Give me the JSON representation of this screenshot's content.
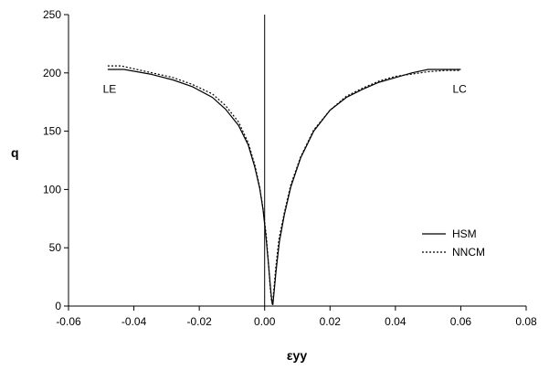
{
  "chart_data": {
    "type": "line",
    "title": "",
    "xlabel": "εyy",
    "ylabel": "q",
    "xlim": [
      -0.06,
      0.08
    ],
    "ylim": [
      0,
      250
    ],
    "x_ticks": [
      -0.06,
      -0.04,
      -0.02,
      0,
      0.02,
      0.04,
      0.06,
      0.08
    ],
    "x_tick_labels": [
      "-0.06",
      "-0.04",
      "-0.02",
      "0.00",
      "0.02",
      "0.04",
      "0.06",
      "0.08"
    ],
    "y_ticks": [
      0,
      50,
      100,
      150,
      200,
      250
    ],
    "y_tick_labels": [
      "0",
      "50",
      "100",
      "150",
      "200",
      "250"
    ],
    "grid": false,
    "legend_position": "right",
    "annotations": [
      {
        "text": "LE",
        "x": -0.0495,
        "y": 183
      },
      {
        "text": "LC",
        "x": 0.0575,
        "y": 183
      }
    ],
    "series": [
      {
        "name": "HSM",
        "style": "solid",
        "color": "#000000",
        "segments": [
          [
            [
              -0.048,
              203
            ],
            [
              -0.043,
              203
            ],
            [
              -0.035,
              199
            ],
            [
              -0.028,
              194
            ],
            [
              -0.022,
              188
            ],
            [
              -0.016,
              179
            ],
            [
              -0.012,
              169
            ],
            [
              -0.008,
              155
            ],
            [
              -0.005,
              138
            ],
            [
              -0.003,
              119
            ],
            [
              -0.0015,
              101
            ],
            [
              -0.0005,
              83
            ],
            [
              0.0004,
              60
            ],
            [
              0.0012,
              35
            ],
            [
              0.0018,
              15
            ],
            [
              0.0022,
              4
            ],
            [
              0.0025,
              1
            ]
          ],
          [
            [
              0.0025,
              1
            ],
            [
              0.003,
              15
            ],
            [
              0.0035,
              30
            ],
            [
              0.0045,
              55
            ],
            [
              0.006,
              78
            ],
            [
              0.008,
              102
            ],
            [
              0.011,
              127
            ],
            [
              0.015,
              150
            ],
            [
              0.02,
              168
            ],
            [
              0.025,
              179
            ],
            [
              0.03,
              186
            ],
            [
              0.035,
              192
            ],
            [
              0.04,
              196
            ],
            [
              0.045,
              200
            ],
            [
              0.05,
              203
            ],
            [
              0.055,
              203
            ],
            [
              0.06,
              203
            ]
          ]
        ]
      },
      {
        "name": "NNCM",
        "style": "dotted",
        "color": "#000000",
        "segments": [
          [
            [
              -0.048,
              206
            ],
            [
              -0.044,
              206
            ],
            [
              -0.036,
              201
            ],
            [
              -0.028,
              196
            ],
            [
              -0.022,
              190
            ],
            [
              -0.016,
              182
            ],
            [
              -0.012,
              172
            ],
            [
              -0.008,
              158
            ],
            [
              -0.005,
              140
            ],
            [
              -0.003,
              121
            ],
            [
              -0.0015,
              102
            ],
            [
              -0.0004,
              82
            ],
            [
              0.0005,
              60
            ],
            [
              0.0012,
              36
            ],
            [
              0.0017,
              16
            ],
            [
              0.0021,
              5
            ],
            [
              0.0024,
              1
            ]
          ],
          [
            [
              0.0024,
              1
            ],
            [
              0.0029,
              17
            ],
            [
              0.0034,
              33
            ],
            [
              0.0044,
              58
            ],
            [
              0.006,
              80
            ],
            [
              0.008,
              104
            ],
            [
              0.011,
              128
            ],
            [
              0.015,
              151
            ],
            [
              0.02,
              168
            ],
            [
              0.025,
              180
            ],
            [
              0.03,
              187
            ],
            [
              0.035,
              193
            ],
            [
              0.04,
              197
            ],
            [
              0.045,
              199
            ],
            [
              0.05,
              201
            ],
            [
              0.055,
              202
            ],
            [
              0.06,
              202
            ]
          ]
        ]
      }
    ]
  }
}
